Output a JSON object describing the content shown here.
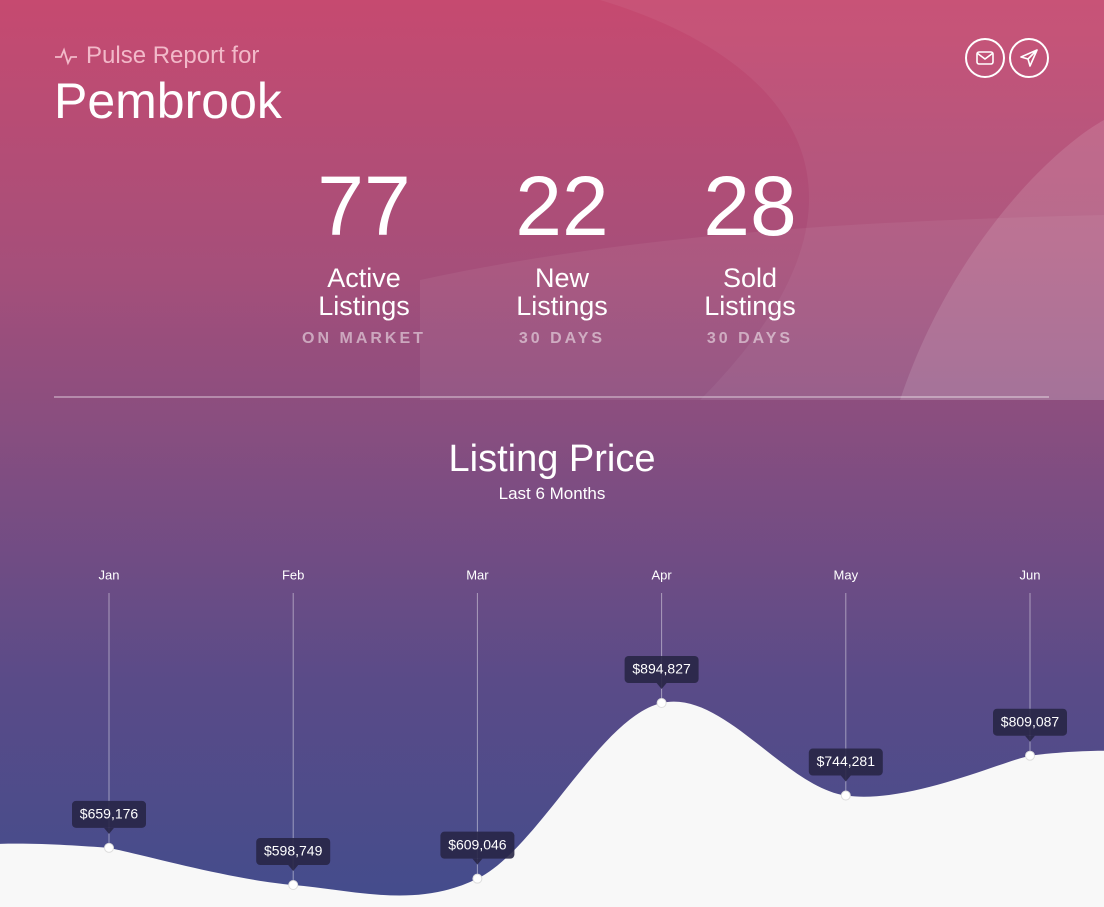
{
  "header": {
    "subtitle": "Pulse Report for",
    "title": "Pembrook"
  },
  "stats": [
    {
      "value": "77",
      "label": "Active Listings",
      "sub": "ON MARKET"
    },
    {
      "value": "22",
      "label": "New Listings",
      "sub": "30 DAYS"
    },
    {
      "value": "28",
      "label": "Sold Listings",
      "sub": "30 DAYS"
    }
  ],
  "chart_data": {
    "type": "area",
    "title": "Listing Price",
    "subtitle": "Last 6 Months",
    "categories": [
      "Jan",
      "Feb",
      "Mar",
      "Apr",
      "May",
      "Jun"
    ],
    "values": [
      659176,
      598749,
      609046,
      894827,
      744281,
      809087
    ],
    "value_labels": [
      "$659,176",
      "$598,749",
      "$609,046",
      "$894,827",
      "$744,281",
      "$809,087"
    ],
    "color": "#f8f8f8"
  }
}
